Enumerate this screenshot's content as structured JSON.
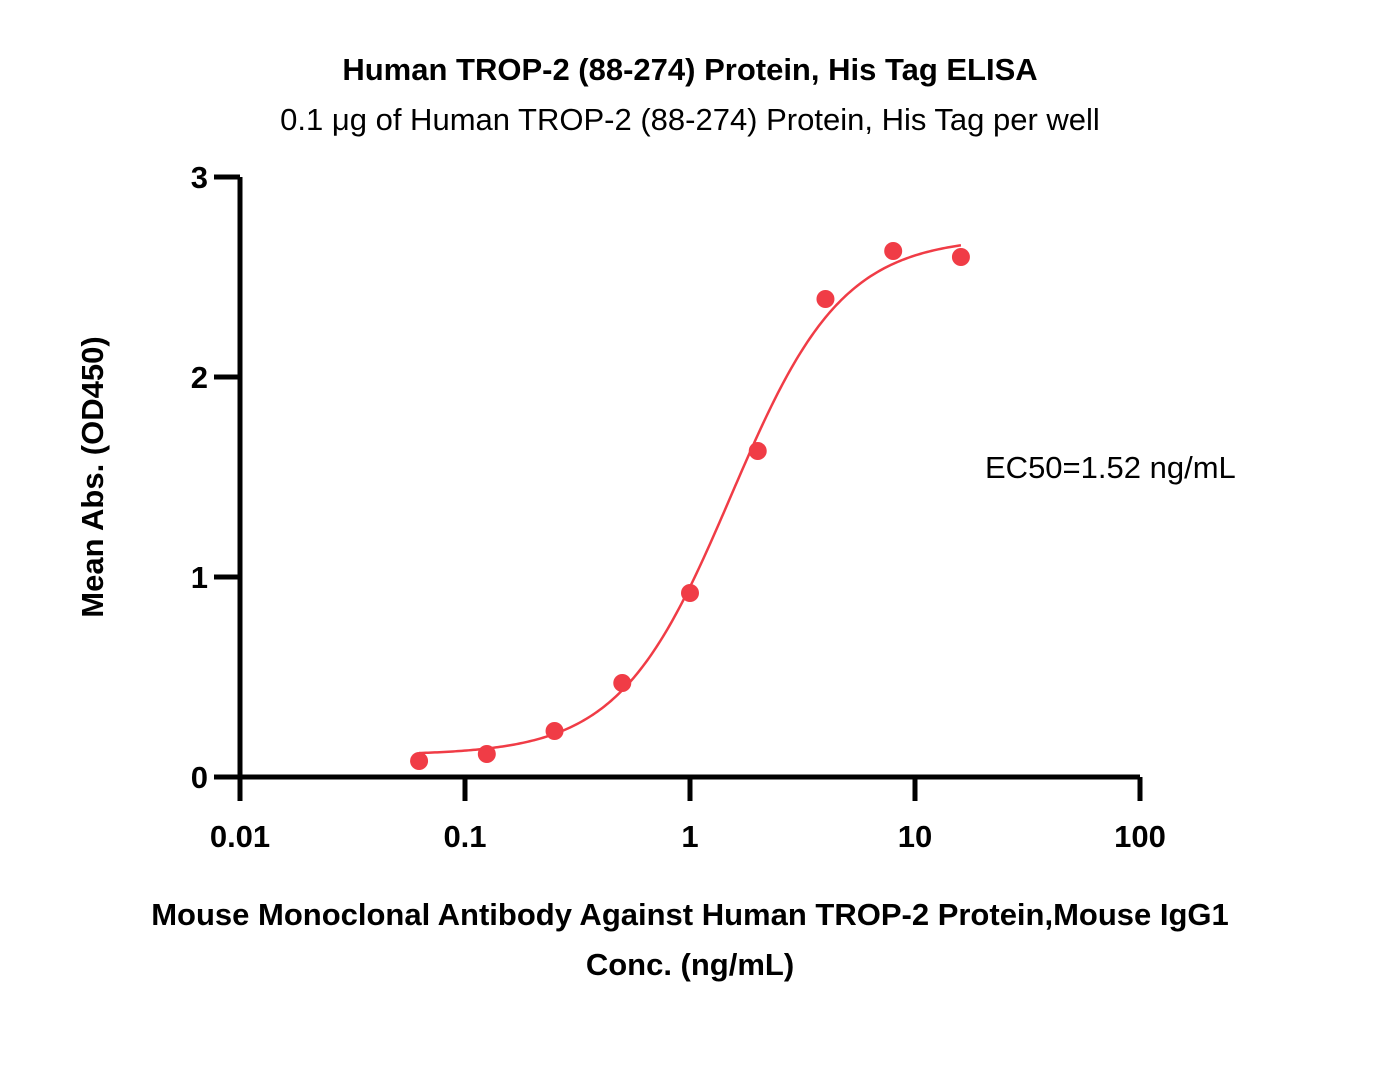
{
  "chart_data": {
    "type": "scatter",
    "title": "Human TROP-2 (88-274) Protein, His Tag ELISA",
    "subtitle": "0.1 μg of Human TROP-2 (88-274) Protein, His Tag per well",
    "xlabel_line1": "Mouse Monoclonal Antibody Against Human TROP-2 Protein,Mouse IgG1",
    "xlabel_line2": "Conc. (ng/mL)",
    "ylabel": "Mean Abs. (OD450)",
    "x_scale": "log",
    "xlim": [
      0.01,
      100
    ],
    "ylim": [
      0,
      3
    ],
    "x_ticks": [
      0.01,
      0.1,
      1,
      10,
      100
    ],
    "x_tick_labels": [
      "0.01",
      "0.1",
      "1",
      "10",
      "100"
    ],
    "y_ticks": [
      0,
      1,
      2,
      3
    ],
    "y_tick_labels": [
      "0",
      "1",
      "2",
      "3"
    ],
    "grid": false,
    "series": [
      {
        "color": "#f03c46",
        "x": [
          0.0625,
          0.125,
          0.25,
          0.5,
          1,
          2,
          4,
          8,
          16
        ],
        "y": [
          0.08,
          0.115,
          0.23,
          0.47,
          0.92,
          1.63,
          2.39,
          2.63,
          2.6
        ],
        "fit": {
          "model": "4PL",
          "bottom": 0.11,
          "top": 2.7,
          "ec50": 1.52,
          "hill": 1.75,
          "x_range": [
            0.0625,
            16
          ]
        }
      }
    ],
    "annotation": "EC50=1.52  ng/mL"
  }
}
